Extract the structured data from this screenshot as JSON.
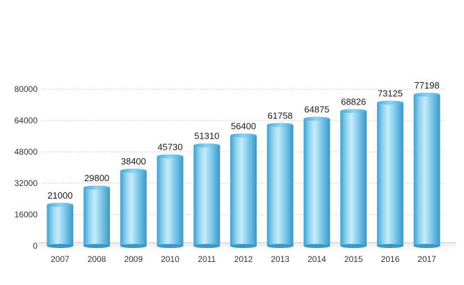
{
  "chart_data": {
    "type": "bar",
    "categories": [
      "2007",
      "2008",
      "2009",
      "2010",
      "2011",
      "2012",
      "2013",
      "2014",
      "2015",
      "2016",
      "2017"
    ],
    "values": [
      21000,
      29800,
      38400,
      45730,
      51310,
      56400,
      61758,
      64875,
      68826,
      73125,
      77198
    ],
    "data_labels": [
      "21000",
      "29800",
      "38400",
      "45730",
      "51310",
      "56400",
      "61758",
      "64875",
      "68826",
      "73125",
      "77198"
    ],
    "y_ticks": [
      0,
      16000,
      32000,
      48000,
      64000,
      80000
    ],
    "y_tick_labels": [
      "0",
      "16000",
      "32000",
      "48000",
      "64000",
      "80000"
    ],
    "ylim": [
      0,
      80000
    ],
    "grid": true,
    "title": "",
    "xlabel": "",
    "ylabel": ""
  },
  "colors": {
    "bar_main": "#7ecbea",
    "bar_light": "#c6ecfa",
    "bar_dark": "#3a97c8",
    "grid": "#c8c8c8"
  }
}
